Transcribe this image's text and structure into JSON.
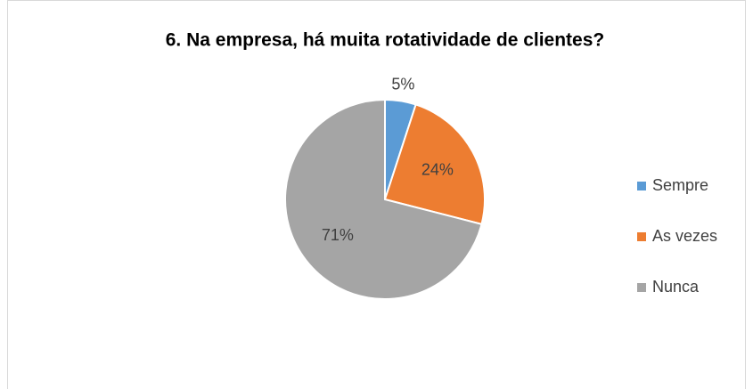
{
  "chart_data": {
    "type": "pie",
    "title": "6. Na empresa, há muita rotatividade de clientes?",
    "categories": [
      "Sempre",
      "As vezes",
      "Nunca"
    ],
    "values": [
      5,
      24,
      71
    ],
    "value_labels": [
      "5%",
      "24%",
      "71%"
    ],
    "colors": [
      "#5b9bd5",
      "#ed7d31",
      "#a5a5a5"
    ],
    "legend": "right"
  }
}
